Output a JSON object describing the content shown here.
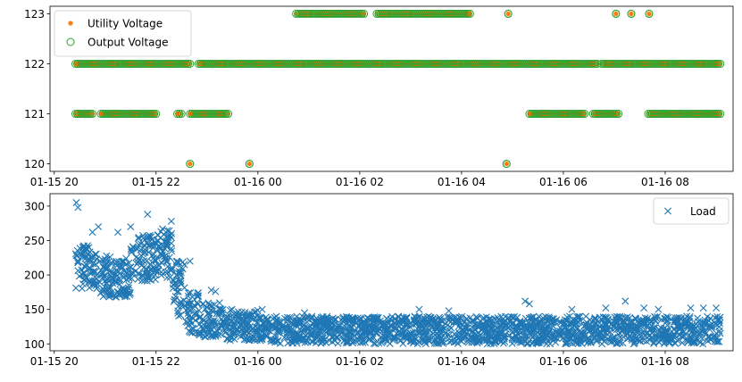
{
  "chart_data": [
    {
      "type": "scatter",
      "title": "",
      "xlabel": "",
      "ylabel": "",
      "xlim": [
        "2024-01-15 19:55",
        "2024-01-16 09:20"
      ],
      "ylim": [
        119.85,
        123.15
      ],
      "x_ticks": [
        "01-15 20",
        "01-15 22",
        "01-16 00",
        "01-16 02",
        "01-16 04",
        "01-16 06",
        "01-16 08"
      ],
      "y_ticks": [
        "120",
        "121",
        "122",
        "123"
      ],
      "legend_position": "upper-left",
      "series": [
        {
          "name": "Utility Voltage",
          "marker": "filled-dot",
          "color": "#ff7f0e",
          "segments": [
            {
              "value": 123,
              "start": "2024-01-16 00:45",
              "end": "2024-01-16 01:15"
            },
            {
              "value": 123,
              "start": "2024-01-16 01:15",
              "end": "2024-01-16 02:05"
            },
            {
              "value": 123,
              "start": "2024-01-16 02:20",
              "end": "2024-01-16 04:10"
            },
            {
              "value": 123,
              "start": "2024-01-16 04:55",
              "end": "2024-01-16 04:55"
            },
            {
              "value": 123,
              "start": "2024-01-16 07:02",
              "end": "2024-01-16 07:02"
            },
            {
              "value": 123,
              "start": "2024-01-16 07:20",
              "end": "2024-01-16 07:20"
            },
            {
              "value": 123,
              "start": "2024-01-16 07:41",
              "end": "2024-01-16 07:41"
            },
            {
              "value": 122,
              "start": "2024-01-15 20:25",
              "end": "2024-01-15 22:40"
            },
            {
              "value": 122,
              "start": "2024-01-15 22:50",
              "end": "2024-01-16 06:40"
            },
            {
              "value": 122,
              "start": "2024-01-16 06:45",
              "end": "2024-01-16 09:05"
            },
            {
              "value": 121,
              "start": "2024-01-15 20:25",
              "end": "2024-01-15 20:45"
            },
            {
              "value": 121,
              "start": "2024-01-15 20:55",
              "end": "2024-01-15 22:00"
            },
            {
              "value": 121,
              "start": "2024-01-15 22:25",
              "end": "2024-01-15 22:30"
            },
            {
              "value": 121,
              "start": "2024-01-15 22:40",
              "end": "2024-01-15 23:25"
            },
            {
              "value": 121,
              "start": "2024-01-16 05:20",
              "end": "2024-01-16 06:25"
            },
            {
              "value": 121,
              "start": "2024-01-16 06:35",
              "end": "2024-01-16 07:05"
            },
            {
              "value": 121,
              "start": "2024-01-16 07:40",
              "end": "2024-01-16 09:05"
            },
            {
              "value": 120,
              "start": "2024-01-15 22:40",
              "end": "2024-01-15 22:40"
            },
            {
              "value": 120,
              "start": "2024-01-15 23:50",
              "end": "2024-01-15 23:50"
            },
            {
              "value": 120,
              "start": "2024-01-16 04:53",
              "end": "2024-01-16 04:53"
            }
          ]
        },
        {
          "name": "Output Voltage",
          "marker": "hollow-circle",
          "color": "#2ca02c",
          "segments": [
            {
              "value": 123,
              "start": "2024-01-16 00:45",
              "end": "2024-01-16 01:15"
            },
            {
              "value": 123,
              "start": "2024-01-16 01:15",
              "end": "2024-01-16 02:05"
            },
            {
              "value": 123,
              "start": "2024-01-16 02:20",
              "end": "2024-01-16 04:10"
            },
            {
              "value": 123,
              "start": "2024-01-16 04:55",
              "end": "2024-01-16 04:55"
            },
            {
              "value": 123,
              "start": "2024-01-16 07:02",
              "end": "2024-01-16 07:02"
            },
            {
              "value": 123,
              "start": "2024-01-16 07:20",
              "end": "2024-01-16 07:20"
            },
            {
              "value": 123,
              "start": "2024-01-16 07:41",
              "end": "2024-01-16 07:41"
            },
            {
              "value": 122,
              "start": "2024-01-15 20:25",
              "end": "2024-01-15 22:40"
            },
            {
              "value": 122,
              "start": "2024-01-15 22:50",
              "end": "2024-01-16 06:40"
            },
            {
              "value": 122,
              "start": "2024-01-16 06:45",
              "end": "2024-01-16 09:05"
            },
            {
              "value": 121,
              "start": "2024-01-15 20:25",
              "end": "2024-01-15 20:45"
            },
            {
              "value": 121,
              "start": "2024-01-15 20:55",
              "end": "2024-01-15 22:00"
            },
            {
              "value": 121,
              "start": "2024-01-15 22:25",
              "end": "2024-01-15 22:30"
            },
            {
              "value": 121,
              "start": "2024-01-15 22:40",
              "end": "2024-01-15 23:25"
            },
            {
              "value": 121,
              "start": "2024-01-16 05:20",
              "end": "2024-01-16 06:25"
            },
            {
              "value": 121,
              "start": "2024-01-16 06:35",
              "end": "2024-01-16 07:05"
            },
            {
              "value": 121,
              "start": "2024-01-16 07:40",
              "end": "2024-01-16 09:05"
            },
            {
              "value": 120,
              "start": "2024-01-15 22:40",
              "end": "2024-01-15 22:40"
            },
            {
              "value": 120,
              "start": "2024-01-15 23:50",
              "end": "2024-01-15 23:50"
            },
            {
              "value": 120,
              "start": "2024-01-16 04:53",
              "end": "2024-01-16 04:53"
            }
          ]
        }
      ]
    },
    {
      "type": "scatter",
      "title": "",
      "xlabel": "",
      "ylabel": "",
      "xlim": [
        "2024-01-15 19:55",
        "2024-01-16 09:20"
      ],
      "ylim": [
        90,
        318
      ],
      "x_ticks": [
        "01-15 20",
        "01-15 22",
        "01-16 00",
        "01-16 02",
        "01-16 04",
        "01-16 06",
        "01-16 08"
      ],
      "y_ticks": [
        "100",
        "150",
        "200",
        "250",
        "300"
      ],
      "legend_position": "upper-right",
      "series": [
        {
          "name": "Load",
          "marker": "x",
          "color": "#1f77b4",
          "bands": [
            {
              "start": "2024-01-15 20:25",
              "end": "2024-01-15 20:50",
              "low": 180,
              "high": 245
            },
            {
              "start": "2024-01-15 20:50",
              "end": "2024-01-15 21:30",
              "low": 168,
              "high": 228
            },
            {
              "start": "2024-01-15 21:30",
              "end": "2024-01-15 22:00",
              "low": 190,
              "high": 258
            },
            {
              "start": "2024-01-15 22:00",
              "end": "2024-01-15 22:20",
              "low": 195,
              "high": 268
            },
            {
              "start": "2024-01-15 22:20",
              "end": "2024-01-15 22:35",
              "low": 140,
              "high": 220
            },
            {
              "start": "2024-01-15 22:35",
              "end": "2024-01-15 22:50",
              "low": 115,
              "high": 175
            },
            {
              "start": "2024-01-15 22:50",
              "end": "2024-01-15 23:20",
              "low": 110,
              "high": 160
            },
            {
              "start": "2024-01-15 23:20",
              "end": "2024-01-16 00:00",
              "low": 105,
              "high": 150
            },
            {
              "start": "2024-01-16 00:00",
              "end": "2024-01-16 09:05",
              "low": 100,
              "high": 140
            }
          ],
          "spikes": [
            {
              "x": "2024-01-15 20:26",
              "y": 305
            },
            {
              "x": "2024-01-15 20:28",
              "y": 298
            },
            {
              "x": "2024-01-15 20:45",
              "y": 262
            },
            {
              "x": "2024-01-15 20:52",
              "y": 270
            },
            {
              "x": "2024-01-15 21:15",
              "y": 262
            },
            {
              "x": "2024-01-15 21:30",
              "y": 270
            },
            {
              "x": "2024-01-15 21:50",
              "y": 288
            },
            {
              "x": "2024-01-15 22:18",
              "y": 278
            },
            {
              "x": "2024-01-15 22:40",
              "y": 220
            },
            {
              "x": "2024-01-15 23:05",
              "y": 178
            },
            {
              "x": "2024-01-15 23:10",
              "y": 176
            },
            {
              "x": "2024-01-16 00:05",
              "y": 150
            },
            {
              "x": "2024-01-16 00:55",
              "y": 145
            },
            {
              "x": "2024-01-16 03:10",
              "y": 150
            },
            {
              "x": "2024-01-16 03:45",
              "y": 148
            },
            {
              "x": "2024-01-16 05:15",
              "y": 162
            },
            {
              "x": "2024-01-16 05:20",
              "y": 158
            },
            {
              "x": "2024-01-16 06:10",
              "y": 150
            },
            {
              "x": "2024-01-16 06:50",
              "y": 152
            },
            {
              "x": "2024-01-16 07:13",
              "y": 162
            },
            {
              "x": "2024-01-16 07:35",
              "y": 152
            },
            {
              "x": "2024-01-16 07:52",
              "y": 150
            },
            {
              "x": "2024-01-16 08:30",
              "y": 152
            },
            {
              "x": "2024-01-16 08:45",
              "y": 152
            },
            {
              "x": "2024-01-16 09:00",
              "y": 152
            }
          ]
        }
      ]
    }
  ]
}
